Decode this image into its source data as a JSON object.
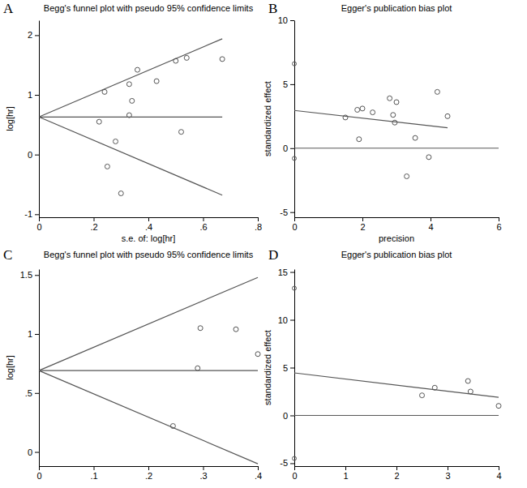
{
  "chart_data": [
    {
      "panel": "A",
      "type": "scatter",
      "marker": "circle",
      "title": "Begg's funnel plot with pseudo 95% confidence limits",
      "x_label": "s.e. of: log[hr]",
      "y_label": "log[hr]",
      "x": [
        0.22,
        0.24,
        0.25,
        0.28,
        0.3,
        0.33,
        0.34,
        0.33,
        0.36,
        0.43,
        0.5,
        0.52,
        0.54,
        0.67
      ],
      "values": [
        0.55,
        1.05,
        -0.2,
        0.22,
        -0.65,
        1.18,
        0.9,
        0.66,
        1.42,
        1.23,
        1.57,
        0.38,
        1.62,
        1.6
      ],
      "funnel": {
        "center": 0.63,
        "se_end": 0.67,
        "upper_end": 1.94,
        "lower_end": -0.68
      },
      "xlim": [
        0,
        0.8
      ],
      "xticks": [
        0,
        {
          "value": 0.2,
          "label": ".2"
        },
        {
          "value": 0.4,
          "label": ".4"
        },
        {
          "value": 0.6,
          "label": ".6"
        },
        {
          "value": 0.8,
          "label": ".8"
        }
      ],
      "ylim": [
        -1.05,
        2.25
      ],
      "yticks": [
        -1,
        0,
        1,
        2
      ]
    },
    {
      "panel": "B",
      "type": "scatter",
      "marker": "circle",
      "title": "Egger's publication bias plot",
      "x_label": "precision",
      "y_label": "standardized effect",
      "x": [
        1.5,
        1.85,
        1.9,
        2.0,
        2.3,
        2.8,
        2.9,
        2.95,
        3.0,
        3.3,
        3.55,
        3.95,
        4.2,
        4.5
      ],
      "values": [
        2.4,
        3.0,
        0.7,
        3.1,
        2.8,
        3.9,
        2.6,
        2.0,
        3.6,
        -2.2,
        0.8,
        -0.7,
        4.4,
        2.5
      ],
      "intercept_ci": [
        -0.8,
        6.6
      ],
      "fit": {
        "x": [
          0,
          4.5
        ],
        "values": [
          2.95,
          1.6
        ]
      },
      "reference_line": 0,
      "xlim": [
        0,
        6
      ],
      "xticks": [
        0,
        2,
        4,
        6
      ],
      "ylim": [
        -5.4,
        10
      ],
      "yticks": [
        -5,
        0,
        5,
        10
      ]
    },
    {
      "panel": "C",
      "type": "scatter",
      "marker": "circle",
      "title": "Begg's funnel plot with pseudo 95% confidence limits",
      "y_label": "log[hr]",
      "x": [
        0.245,
        0.29,
        0.295,
        0.36,
        0.4
      ],
      "values": [
        0.22,
        0.71,
        1.05,
        1.04,
        0.83
      ],
      "funnel": {
        "center": 0.69,
        "se_end": 0.4,
        "upper_end": 1.48,
        "lower_end": -0.1
      },
      "xlim": [
        0,
        0.4
      ],
      "xticks": [
        0,
        {
          "value": 0.1,
          "label": ".1"
        },
        {
          "value": 0.2,
          "label": ".2"
        },
        {
          "value": 0.3,
          "label": ".3"
        },
        {
          "value": 0.4,
          "label": ".4"
        }
      ],
      "ylim": [
        -0.12,
        1.55
      ],
      "yticks": [
        0,
        {
          "value": 0.5,
          "label": ".5"
        },
        1,
        1.5
      ]
    },
    {
      "panel": "D",
      "type": "scatter",
      "marker": "circle",
      "title": "Egger's publication bias plot",
      "y_label": "standardized effect",
      "x": [
        2.5,
        2.75,
        3.4,
        3.45,
        4.0
      ],
      "values": [
        2.1,
        2.9,
        3.6,
        2.5,
        1.0
      ],
      "intercept_ci": [
        -4.5,
        13.3
      ],
      "fit": {
        "x": [
          0,
          4.0
        ],
        "values": [
          4.45,
          1.9
        ]
      },
      "reference_line": 0,
      "xlim": [
        0,
        4
      ],
      "xticks": [
        0,
        1,
        2,
        3,
        4
      ],
      "ylim": [
        -5.3,
        15.3
      ],
      "yticks": [
        -5,
        0,
        5,
        10,
        15
      ]
    }
  ]
}
